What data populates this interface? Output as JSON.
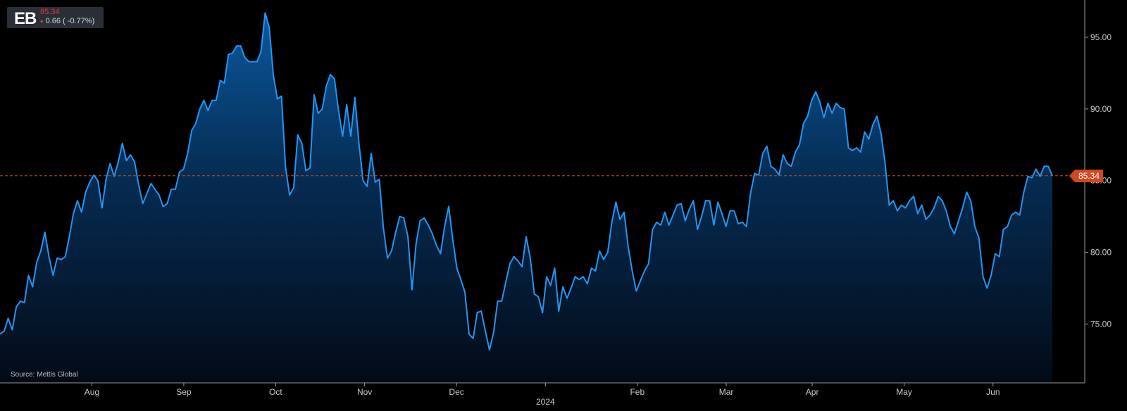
{
  "header": {
    "symbol": "EB",
    "price": "85.34",
    "change": "0.66 ( -0.77%)"
  },
  "source_note": "Source: Mettis Global",
  "last_value_label": "85.34",
  "colors": {
    "line": "#2196f3",
    "reference_line": "#d2471e",
    "negative": "#e0343f"
  },
  "chart_data": {
    "type": "area",
    "title": "",
    "xlabel": "",
    "ylabel": "",
    "y_ticks": [
      "75.00",
      "80.00",
      "85.00",
      "90.00",
      "95.00"
    ],
    "ylim": [
      70.9,
      97.6
    ],
    "x_labels": [
      "Aug",
      "Sep",
      "Oct",
      "Nov",
      "Dec",
      "2024",
      "Feb",
      "Mar",
      "Apr",
      "May",
      "Jun"
    ],
    "x_label_day_index": [
      99,
      130,
      161,
      191,
      222,
      252,
      283,
      313,
      342,
      373,
      403
    ],
    "x_range_days": [
      68,
      423
    ],
    "last_value": 85.34,
    "legend": "none",
    "grid": false,
    "series": [
      {
        "values": [
          74.3,
          74.5,
          75.4,
          74.6,
          76.2,
          76.6,
          76.5,
          78.4,
          77.6,
          79.3,
          80.1,
          81.4,
          79.7,
          78.4,
          79.6,
          79.5,
          79.7,
          81.1,
          82.7,
          83.6,
          82.8,
          84.2,
          84.9,
          85.4,
          85.0,
          83.1,
          85.1,
          86.2,
          85.3,
          86.3,
          87.6,
          86.4,
          86.8,
          86.3,
          84.7,
          83.4,
          84.1,
          84.8,
          84.4,
          84.0,
          83.2,
          83.4,
          84.4,
          84.4,
          85.6,
          85.8,
          86.9,
          88.5,
          89.0,
          90.0,
          90.6,
          89.9,
          90.6,
          90.6,
          92.0,
          91.8,
          93.8,
          93.9,
          94.4,
          94.4,
          93.6,
          93.3,
          93.3,
          93.3,
          94.0,
          96.7,
          95.7,
          92.4,
          90.7,
          90.9,
          86.0,
          84.0,
          84.5,
          88.2,
          87.6,
          85.7,
          85.9,
          91.0,
          89.7,
          90.0,
          91.6,
          92.4,
          92.1,
          89.9,
          88.1,
          90.3,
          88.1,
          90.8,
          87.6,
          85.0,
          84.6,
          86.9,
          84.9,
          85.1,
          81.7,
          79.6,
          80.1,
          81.4,
          82.5,
          82.4,
          81.1,
          77.4,
          80.6,
          82.2,
          82.4,
          81.9,
          81.3,
          80.5,
          79.9,
          81.8,
          83.2,
          80.9,
          78.9,
          78.1,
          77.2,
          74.3,
          74.0,
          75.8,
          75.9,
          74.5,
          73.2,
          74.4,
          76.6,
          76.6,
          77.9,
          79.2,
          79.7,
          79.4,
          79.0,
          81.1,
          79.6,
          77.1,
          76.9,
          75.8,
          78.3,
          77.7,
          78.9,
          75.9,
          77.6,
          76.8,
          77.5,
          78.3,
          78.1,
          78.3,
          77.8,
          78.9,
          78.7,
          80.1,
          79.5,
          80.0,
          82.1,
          83.5,
          82.3,
          82.8,
          80.4,
          78.7,
          77.3,
          78.0,
          78.7,
          79.2,
          81.6,
          82.1,
          81.9,
          82.8,
          81.9,
          82.6,
          83.3,
          83.4,
          82.2,
          83.0,
          83.6,
          81.6,
          82.5,
          83.6,
          83.6,
          81.9,
          83.5,
          82.7,
          81.8,
          82.9,
          82.9,
          82.0,
          82.1,
          81.8,
          84.1,
          85.5,
          85.4,
          86.9,
          87.4,
          86.0,
          85.8,
          85.4,
          86.8,
          86.2,
          86.0,
          87.0,
          87.5,
          89.0,
          89.5,
          90.6,
          91.2,
          90.5,
          89.4,
          90.4,
          89.7,
          90.4,
          90.1,
          90.0,
          87.3,
          87.1,
          87.3,
          87.0,
          88.4,
          87.9,
          88.9,
          89.5,
          88.3,
          86.2,
          83.3,
          83.6,
          82.9,
          83.3,
          83.1,
          83.6,
          83.9,
          82.7,
          83.3,
          82.3,
          82.6,
          83.1,
          83.9,
          83.6,
          82.9,
          81.8,
          81.3,
          82.2,
          83.1,
          84.2,
          83.6,
          81.8,
          81.0,
          78.3,
          77.5,
          78.4,
          79.9,
          79.7,
          81.6,
          81.8,
          82.6,
          82.8,
          82.6,
          84.2,
          85.3,
          85.2,
          85.8,
          85.3,
          86.0,
          86.0,
          85.34
        ]
      }
    ]
  }
}
